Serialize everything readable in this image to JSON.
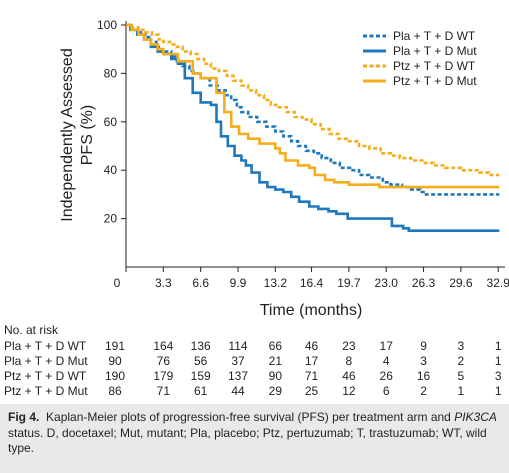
{
  "chart_data": {
    "type": "line",
    "subtype": "kaplan-meier",
    "xlabel": "Time (months)",
    "ylabel_lines": [
      "Independently Assessed",
      "PFS (%)"
    ],
    "x_ticks": [
      0,
      3.3,
      6.6,
      9.9,
      13.2,
      16.4,
      19.7,
      23.0,
      26.3,
      29.6,
      32.9
    ],
    "x_tick_labels": [
      "0",
      "3.3",
      "6.6",
      "9.9",
      "13.2",
      "16.4",
      "19.7",
      "23.0",
      "26.3",
      "29.6",
      "32.9"
    ],
    "y_ticks": [
      20,
      40,
      60,
      80,
      100
    ],
    "y_tick_labels": [
      "20",
      "40",
      "60",
      "80",
      "100"
    ],
    "xlim": [
      0,
      33.5
    ],
    "ylim": [
      0,
      100
    ],
    "grid": false,
    "legend_position": "top-right",
    "series": [
      {
        "name": "Pla + T + D WT",
        "color": "#1f78bd",
        "dash": true,
        "points": [
          [
            0,
            100
          ],
          [
            0.3,
            99
          ],
          [
            0.8,
            98
          ],
          [
            1.2,
            97
          ],
          [
            1.7,
            95
          ],
          [
            2.2,
            93
          ],
          [
            2.7,
            91
          ],
          [
            3.1,
            90
          ],
          [
            3.5,
            89
          ],
          [
            4.0,
            87
          ],
          [
            4.5,
            85
          ],
          [
            5.0,
            83
          ],
          [
            5.6,
            81
          ],
          [
            6.1,
            80
          ],
          [
            6.6,
            78
          ],
          [
            7.4,
            75
          ],
          [
            8.1,
            73
          ],
          [
            8.8,
            71
          ],
          [
            9.3,
            69
          ],
          [
            9.8,
            66
          ],
          [
            10.2,
            64
          ],
          [
            10.8,
            62
          ],
          [
            11.6,
            60
          ],
          [
            12.4,
            58
          ],
          [
            13.2,
            56
          ],
          [
            13.9,
            54
          ],
          [
            14.6,
            52
          ],
          [
            15.2,
            50
          ],
          [
            15.9,
            48
          ],
          [
            16.6,
            47
          ],
          [
            17.3,
            45
          ],
          [
            18.1,
            43
          ],
          [
            18.9,
            41
          ],
          [
            19.8,
            40
          ],
          [
            20.6,
            38
          ],
          [
            21.5,
            37
          ],
          [
            22.7,
            35
          ],
          [
            23.4,
            34
          ],
          [
            24.4,
            33
          ],
          [
            25.2,
            32
          ],
          [
            26.0,
            31
          ],
          [
            26.3,
            30
          ],
          [
            33.0,
            30
          ]
        ]
      },
      {
        "name": "Pla + T + D Mut",
        "color": "#1f78bd",
        "dash": false,
        "points": [
          [
            0,
            100
          ],
          [
            0.4,
            98
          ],
          [
            1.0,
            96
          ],
          [
            1.6,
            94
          ],
          [
            2.2,
            91
          ],
          [
            2.8,
            89
          ],
          [
            3.3,
            88
          ],
          [
            4.0,
            86
          ],
          [
            4.6,
            84
          ],
          [
            5.2,
            78
          ],
          [
            5.9,
            72
          ],
          [
            6.6,
            68
          ],
          [
            7.5,
            67
          ],
          [
            8.0,
            60
          ],
          [
            8.4,
            54
          ],
          [
            9.0,
            50
          ],
          [
            9.6,
            46
          ],
          [
            10.2,
            44
          ],
          [
            10.6,
            42
          ],
          [
            11.1,
            39
          ],
          [
            11.8,
            35
          ],
          [
            12.5,
            33
          ],
          [
            13.2,
            32
          ],
          [
            13.9,
            31
          ],
          [
            14.6,
            29
          ],
          [
            15.3,
            27
          ],
          [
            16.2,
            25
          ],
          [
            17.0,
            24
          ],
          [
            17.9,
            23
          ],
          [
            18.6,
            22
          ],
          [
            19.6,
            20
          ],
          [
            23.0,
            20
          ],
          [
            23.5,
            17
          ],
          [
            24.5,
            16
          ],
          [
            25.0,
            15
          ],
          [
            33.0,
            15
          ]
        ]
      },
      {
        "name": "Ptz + T + D WT",
        "color": "#f5ad1b",
        "dash": true,
        "points": [
          [
            0,
            100
          ],
          [
            0.5,
            99
          ],
          [
            1.1,
            98
          ],
          [
            1.7,
            97
          ],
          [
            2.3,
            96
          ],
          [
            2.9,
            94
          ],
          [
            3.3,
            93
          ],
          [
            3.9,
            92
          ],
          [
            4.5,
            91
          ],
          [
            5.0,
            89
          ],
          [
            5.7,
            88
          ],
          [
            6.3,
            86
          ],
          [
            6.9,
            84
          ],
          [
            7.5,
            82
          ],
          [
            8.2,
            81
          ],
          [
            8.9,
            79
          ],
          [
            9.5,
            77
          ],
          [
            10.2,
            75
          ],
          [
            10.8,
            73
          ],
          [
            11.5,
            71
          ],
          [
            12.2,
            69
          ],
          [
            12.8,
            67
          ],
          [
            13.5,
            66
          ],
          [
            14.2,
            64
          ],
          [
            14.9,
            62
          ],
          [
            15.6,
            61
          ],
          [
            16.4,
            59
          ],
          [
            17.2,
            57
          ],
          [
            18.0,
            55
          ],
          [
            18.8,
            53
          ],
          [
            19.7,
            52
          ],
          [
            20.6,
            50
          ],
          [
            21.5,
            49
          ],
          [
            22.5,
            47
          ],
          [
            23.4,
            46
          ],
          [
            24.2,
            45
          ],
          [
            25.2,
            44
          ],
          [
            26.2,
            43
          ],
          [
            27.2,
            42
          ],
          [
            28.2,
            41
          ],
          [
            29.6,
            40
          ],
          [
            31.2,
            39
          ],
          [
            32.1,
            38
          ],
          [
            33.0,
            38
          ]
        ]
      },
      {
        "name": "Ptz + T + D Mut",
        "color": "#f5ad1b",
        "dash": false,
        "points": [
          [
            0,
            100
          ],
          [
            0.5,
            98
          ],
          [
            1.1,
            96
          ],
          [
            1.6,
            94
          ],
          [
            2.2,
            92
          ],
          [
            2.8,
            90
          ],
          [
            3.3,
            88
          ],
          [
            4.6,
            85
          ],
          [
            5.9,
            80
          ],
          [
            6.6,
            78
          ],
          [
            8.0,
            72
          ],
          [
            8.7,
            64
          ],
          [
            9.3,
            58
          ],
          [
            10.0,
            55
          ],
          [
            10.8,
            53
          ],
          [
            11.8,
            51
          ],
          [
            13.2,
            49
          ],
          [
            13.6,
            47
          ],
          [
            14.1,
            44
          ],
          [
            15.2,
            42
          ],
          [
            16.2,
            41
          ],
          [
            16.7,
            38
          ],
          [
            17.6,
            36
          ],
          [
            18.4,
            35
          ],
          [
            19.7,
            34
          ],
          [
            22.4,
            33
          ],
          [
            33.0,
            33
          ]
        ]
      }
    ],
    "risk_table": {
      "header": "No. at risk",
      "rows": [
        {
          "label": "Pla + T + D WT",
          "values": [
            "191",
            "164",
            "136",
            "114",
            "66",
            "46",
            "23",
            "17",
            "9",
            "3",
            "1"
          ]
        },
        {
          "label": "Pla + T + D Mut",
          "values": [
            "90",
            "76",
            "56",
            "37",
            "21",
            "17",
            "8",
            "4",
            "3",
            "2",
            "1"
          ]
        },
        {
          "label": "Ptz + T + D WT",
          "values": [
            "190",
            "179",
            "159",
            "137",
            "90",
            "71",
            "46",
            "26",
            "16",
            "5",
            "3"
          ]
        },
        {
          "label": "Ptz + T + D Mut",
          "values": [
            "86",
            "71",
            "61",
            "44",
            "29",
            "25",
            "12",
            "6",
            "2",
            "1",
            "1"
          ]
        }
      ]
    }
  },
  "caption": {
    "label": "Fig 4.",
    "part1": "Kaplan-Meier plots of progression-free survival (PFS) per treatment arm and ",
    "gene": "PIK3CA",
    "part2": " status. D, docetaxel; Mut, mutant; Pla, placebo; Ptz, pertuzumab; T, trastuzumab; WT, wild type."
  }
}
